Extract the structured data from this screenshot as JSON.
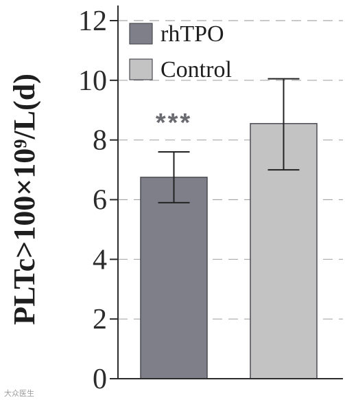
{
  "chart_data": {
    "type": "bar",
    "title": "",
    "xlabel": "",
    "ylabel": "PLTc>100×10⁹/L(d)",
    "ylim": [
      0,
      12
    ],
    "yticks": [
      0,
      2,
      4,
      6,
      8,
      10,
      12
    ],
    "grid": "horizontal-dashed",
    "legend_position": "top-left",
    "categories": [
      "rhTPO",
      "Control"
    ],
    "series": [
      {
        "name": "rhTPO",
        "value": 6.75,
        "error_low": 5.9,
        "error_high": 7.6,
        "color": "#7f7f89",
        "annotation": "***"
      },
      {
        "name": "Control",
        "value": 8.55,
        "error_low": 7.0,
        "error_high": 10.05,
        "color": "#c3c3c3",
        "annotation": ""
      }
    ]
  },
  "watermark": "大众医生"
}
